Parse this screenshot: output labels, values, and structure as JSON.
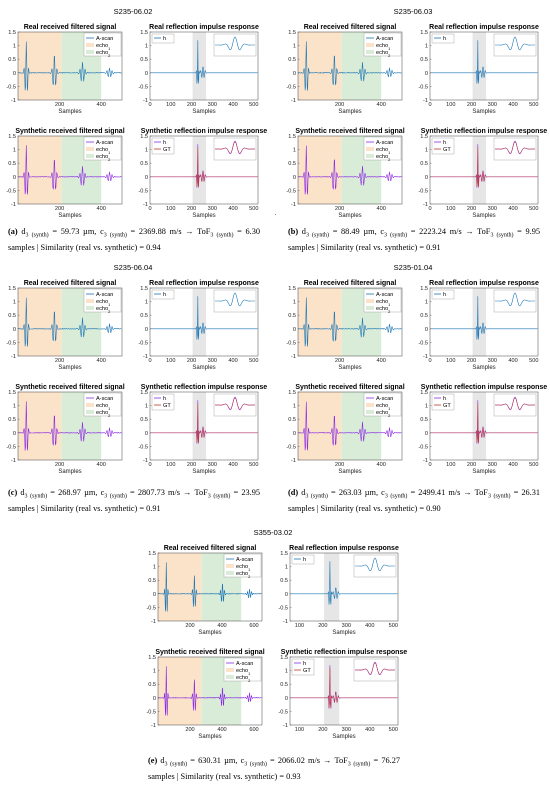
{
  "colors": {
    "ascan": "#1f77b4",
    "synthetic": "#8a2be2",
    "gt": "#c0392b",
    "echo1_fill": "#fbe3c9",
    "echo2_fill": "#d9ecd8",
    "gray_fill": "#d6d6d6"
  },
  "labels": {
    "t_real_signal": "Real received filtered signal",
    "t_real_ir": "Real reflection impulse response",
    "t_syn_signal": "Synthetic received filtered signal",
    "t_syn_ir": "Synthetic reflection impulse response",
    "xlabel": "Samples",
    "leg_ascan": "A-scan",
    "leg_echo1": "echo",
    "leg_echo2": "echo",
    "sub1": "1",
    "sub2": "2",
    "leg_h": "h",
    "leg_gt": "GT"
  },
  "figures": [
    {
      "id": "a",
      "title": "S235-06.02",
      "xmax": 500,
      "sig_ticks": [
        "200",
        "400"
      ],
      "ir_ticks": [
        "0",
        "100",
        "200",
        "300",
        "400",
        "500"
      ],
      "yticks": [
        "1.5",
        "1",
        "0.5",
        "0",
        "-0.5",
        "-1"
      ],
      "caption": {
        "letter": "(a)",
        "d": "59.73 µm",
        "c": "2369.88 m/s",
        "tof": "6.30 samples",
        "sim": "0.94"
      }
    },
    {
      "id": "b",
      "title": "S235-06.03",
      "xmax": 500,
      "sig_ticks": [
        "200",
        "400"
      ],
      "ir_ticks": [
        "0",
        "100",
        "200",
        "300",
        "400",
        "500"
      ],
      "yticks": [
        "1.5",
        "1",
        "0.5",
        "0",
        "-0.5",
        "-1"
      ],
      "caption": {
        "letter": "(b)",
        "d": "88.49 µm",
        "c": "2223.24 m/s",
        "tof": "9.95 samples",
        "sim": "0.91"
      }
    },
    {
      "id": "c",
      "title": "S235-06.04",
      "xmax": 500,
      "sig_ticks": [
        "200",
        "400"
      ],
      "ir_ticks": [
        "0",
        "100",
        "200",
        "300",
        "400",
        "500"
      ],
      "yticks": [
        "1.5",
        "1",
        "0.5",
        "0",
        "-0.5",
        "-1"
      ],
      "caption": {
        "letter": "(c)",
        "d": "268.97 µm",
        "c": "2807.73 m/s",
        "tof": "23.95 samples",
        "sim": "0.91"
      }
    },
    {
      "id": "d",
      "title": "S235-01.04",
      "xmax": 500,
      "sig_ticks": [
        "200",
        "400"
      ],
      "ir_ticks": [
        "0",
        "100",
        "200",
        "300",
        "400",
        "500"
      ],
      "yticks": [
        "1.5",
        "1",
        "0.5",
        "0",
        "-0.5",
        "-1"
      ],
      "caption": {
        "letter": "(d)",
        "d": "263.03 µm",
        "c": "2499.41 m/s",
        "tof": "26.31 samples",
        "sim": "0.90"
      }
    },
    {
      "id": "e",
      "title": "S355-03.02",
      "xmax": 650,
      "sig_ticks": [
        "200",
        "400",
        "600"
      ],
      "ir_ticks": [
        "100",
        "200",
        "300",
        "400",
        "500"
      ],
      "yticks": [
        "1.5",
        "1",
        "0.5",
        "0",
        "-0.5",
        "-1"
      ],
      "caption": {
        "letter": "(e)",
        "d": "630.31 µm",
        "c": "2066.02 m/s",
        "tof": "76.27 samples",
        "sim": "0.93"
      }
    }
  ],
  "caption_text": {
    "arrow": "→",
    "tof": "ToF",
    "sub3s": "3 (synth)",
    "d": "d",
    "c": "c",
    "eq": "=",
    "sep": "|",
    "sim_label": "Similarity (real vs. synthetic) ="
  }
}
